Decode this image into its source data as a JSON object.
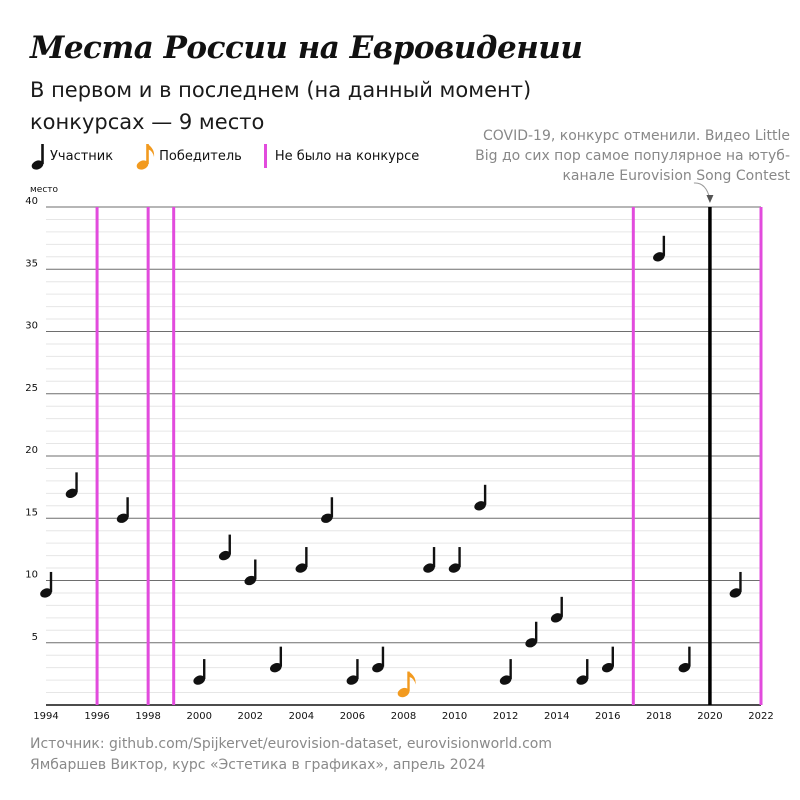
{
  "title": "Места России на Евровидении",
  "subtitle": "В первом и в последнем (на данный момент) конкурсах — 9 место",
  "legend": {
    "participant": "Участник",
    "winner": "Победитель",
    "absent": "Не было на конкурсе"
  },
  "annotation": "COVID-19, конкурс отменили. Видео Little Big до сих пор самое популярное на ютуб-канале Eurovision Song Contest",
  "source": {
    "line1": "Источник: github.com/Spijkervet/eurovision-dataset, eurovisionworld.com",
    "line2": "Ямбаршев Виктор, курс «Эстетика в графиках», апрель 2024"
  },
  "colors": {
    "participant": "#111111",
    "winner": "#f29a1f",
    "absent": "#e24bdd",
    "cancelled": "#000000",
    "grid_major": "#6e6e6e",
    "grid_minor": "#e6e6e6"
  },
  "chart_data": {
    "type": "scatter",
    "ylabel": "место",
    "xlabel": "",
    "xlim": [
      1994,
      2022
    ],
    "ylim": [
      0,
      40
    ],
    "x_ticks": [
      1994,
      1996,
      1998,
      2000,
      2002,
      2004,
      2006,
      2008,
      2010,
      2012,
      2014,
      2016,
      2018,
      2020,
      2022
    ],
    "y_ticks": [
      5,
      10,
      15,
      20,
      25,
      30,
      35,
      40
    ],
    "grid": true,
    "legend_position": "top-left",
    "series": [
      {
        "name": "Участник",
        "marker": "quarter-note",
        "points": [
          {
            "year": 1994,
            "place": 9
          },
          {
            "year": 1995,
            "place": 17
          },
          {
            "year": 1997,
            "place": 15
          },
          {
            "year": 2000,
            "place": 2
          },
          {
            "year": 2001,
            "place": 12
          },
          {
            "year": 2002,
            "place": 10
          },
          {
            "year": 2003,
            "place": 3
          },
          {
            "year": 2004,
            "place": 11
          },
          {
            "year": 2005,
            "place": 15
          },
          {
            "year": 2006,
            "place": 2
          },
          {
            "year": 2007,
            "place": 3
          },
          {
            "year": 2009,
            "place": 11
          },
          {
            "year": 2010,
            "place": 11
          },
          {
            "year": 2011,
            "place": 16
          },
          {
            "year": 2012,
            "place": 2
          },
          {
            "year": 2013,
            "place": 5
          },
          {
            "year": 2014,
            "place": 7
          },
          {
            "year": 2015,
            "place": 2
          },
          {
            "year": 2016,
            "place": 3
          },
          {
            "year": 2018,
            "place": 36
          },
          {
            "year": 2019,
            "place": 3
          },
          {
            "year": 2021,
            "place": 9
          }
        ]
      },
      {
        "name": "Победитель",
        "marker": "eighth-note",
        "points": [
          {
            "year": 2008,
            "place": 1
          }
        ]
      }
    ],
    "absent_years": [
      1996,
      1998,
      1999,
      2017,
      2022
    ],
    "cancelled_years": [
      2020
    ]
  }
}
